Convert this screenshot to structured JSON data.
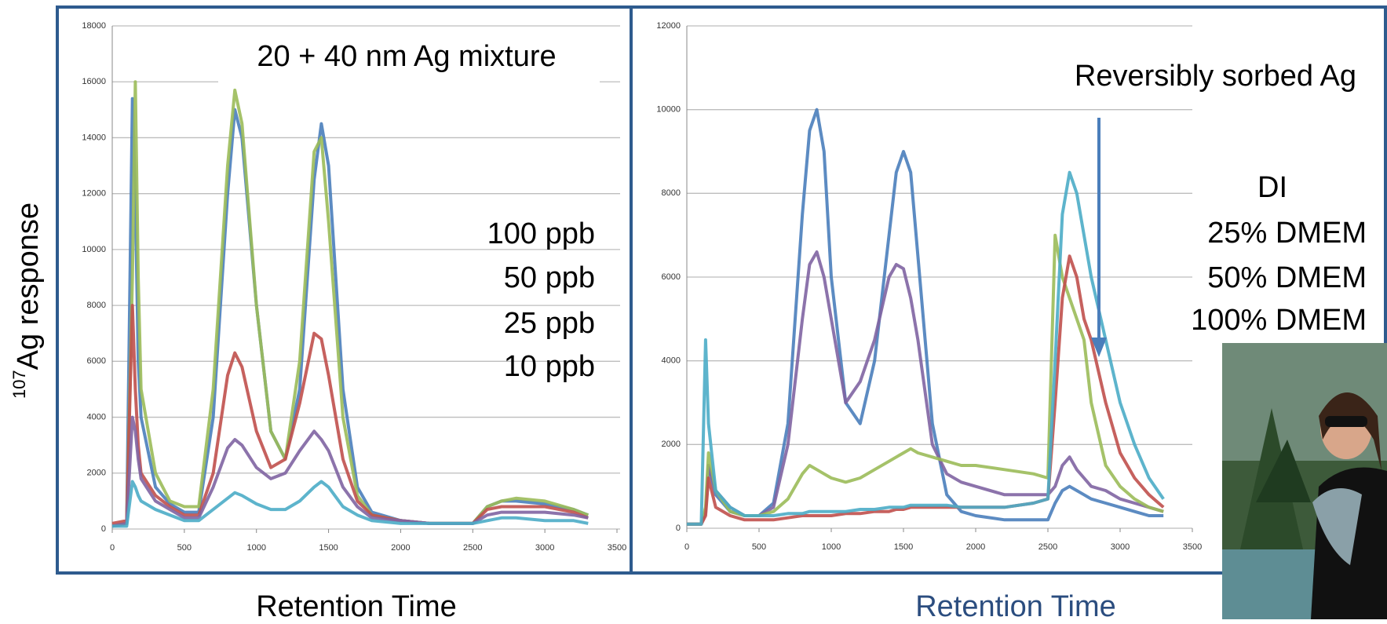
{
  "chart_data": [
    {
      "type": "line",
      "title": "20 + 40 nm Ag mixture",
      "annotations": [
        "100 ppb",
        "50 ppb",
        "25 ppb",
        "10 ppb"
      ],
      "xlabel": "Retention Time",
      "ylabel_sup": "107",
      "ylabel": "Ag response",
      "xlim": [
        0,
        3500
      ],
      "xticks": [
        0,
        500,
        1000,
        1500,
        2000,
        2500,
        3000,
        3500
      ],
      "ylim": [
        0,
        18000
      ],
      "yticks": [
        0,
        2000,
        4000,
        6000,
        8000,
        10000,
        12000,
        14000,
        16000,
        18000
      ],
      "grid": true,
      "x": [
        0,
        100,
        140,
        160,
        180,
        200,
        300,
        400,
        500,
        600,
        700,
        800,
        850,
        900,
        1000,
        1100,
        1200,
        1300,
        1400,
        1450,
        1500,
        1600,
        1700,
        1800,
        2000,
        2200,
        2500,
        2600,
        2700,
        2800,
        3000,
        3200,
        3300
      ],
      "series": [
        {
          "color": "#4a7ebb",
          "values": [
            100,
            200,
            15400,
            12000,
            6000,
            4000,
            1500,
            900,
            600,
            600,
            4000,
            12000,
            15000,
            14000,
            8000,
            3500,
            2500,
            5000,
            12500,
            14500,
            13000,
            5000,
            1500,
            600,
            300,
            200,
            200,
            800,
            1000,
            1000,
            900,
            700,
            500
          ]
        },
        {
          "color": "#9bbb59",
          "values": [
            100,
            200,
            9000,
            16000,
            9000,
            5000,
            2000,
            1000,
            800,
            800,
            5000,
            13000,
            15700,
            14500,
            8000,
            3500,
            2500,
            6000,
            13500,
            14000,
            11000,
            4000,
            1200,
            500,
            300,
            200,
            200,
            800,
            1000,
            1100,
            1000,
            700,
            500
          ]
        },
        {
          "color": "#c0504d",
          "values": [
            200,
            300,
            8000,
            5000,
            3000,
            2000,
            1200,
            800,
            500,
            500,
            2000,
            5500,
            6300,
            5800,
            3500,
            2200,
            2500,
            4500,
            7000,
            6800,
            5500,
            2500,
            1000,
            500,
            300,
            200,
            200,
            700,
            800,
            800,
            800,
            600,
            400
          ]
        },
        {
          "color": "#8064a2",
          "values": [
            100,
            200,
            4000,
            3500,
            2500,
            1800,
            1000,
            700,
            400,
            400,
            1500,
            2900,
            3200,
            3000,
            2200,
            1800,
            2000,
            2800,
            3500,
            3200,
            2800,
            1500,
            800,
            400,
            300,
            200,
            200,
            500,
            600,
            600,
            600,
            500,
            400
          ]
        },
        {
          "color": "#4bacc6",
          "values": [
            100,
            100,
            1700,
            1500,
            1200,
            1000,
            700,
            500,
            300,
            300,
            700,
            1100,
            1300,
            1200,
            900,
            700,
            700,
            1000,
            1500,
            1700,
            1500,
            800,
            500,
            300,
            200,
            200,
            200,
            300,
            400,
            400,
            300,
            300,
            200
          ]
        }
      ]
    },
    {
      "type": "line",
      "title": "Reversibly sorbed Ag",
      "annotations": [
        "DI",
        "25% DMEM",
        "50% DMEM",
        "100% DMEM"
      ],
      "xlabel": "Retention Time",
      "xlim": [
        0,
        3500
      ],
      "xticks": [
        0,
        500,
        1000,
        1500,
        2000,
        2500,
        3000,
        3500
      ],
      "ylim": [
        0,
        12000
      ],
      "yticks": [
        0,
        2000,
        4000,
        6000,
        8000,
        10000,
        12000
      ],
      "grid": true,
      "x": [
        0,
        100,
        130,
        150,
        200,
        300,
        400,
        500,
        600,
        700,
        800,
        850,
        900,
        950,
        1000,
        1100,
        1200,
        1300,
        1400,
        1450,
        1500,
        1550,
        1600,
        1700,
        1800,
        1900,
        2000,
        2200,
        2400,
        2500,
        2550,
        2600,
        2650,
        2700,
        2750,
        2800,
        2900,
        3000,
        3100,
        3200,
        3300
      ],
      "series": [
        {
          "color": "#4a7ebb",
          "values": [
            100,
            100,
            400,
            1500,
            800,
            400,
            300,
            300,
            600,
            2500,
            7500,
            9500,
            10000,
            9000,
            6000,
            3000,
            2500,
            4000,
            7000,
            8500,
            9000,
            8500,
            6500,
            2500,
            800,
            400,
            300,
            200,
            200,
            200,
            600,
            900,
            1000,
            900,
            800,
            700,
            600,
            500,
            400,
            300,
            300
          ]
        },
        {
          "color": "#8064a2",
          "values": [
            100,
            100,
            400,
            1500,
            900,
            500,
            300,
            300,
            500,
            2000,
            5000,
            6300,
            6600,
            6000,
            5000,
            3000,
            3500,
            4500,
            6000,
            6300,
            6200,
            5500,
            4500,
            2000,
            1300,
            1100,
            1000,
            800,
            800,
            800,
            1000,
            1500,
            1700,
            1400,
            1200,
            1000,
            900,
            700,
            600,
            500,
            400
          ]
        },
        {
          "color": "#9bbb59",
          "values": [
            100,
            100,
            500,
            1800,
            900,
            400,
            300,
            300,
            400,
            700,
            1300,
            1500,
            1400,
            1300,
            1200,
            1100,
            1200,
            1400,
            1600,
            1700,
            1800,
            1900,
            1800,
            1700,
            1600,
            1500,
            1500,
            1400,
            1300,
            1200,
            7000,
            6000,
            5500,
            5000,
            4500,
            3000,
            1500,
            1000,
            700,
            500,
            400
          ]
        },
        {
          "color": "#c0504d",
          "values": [
            100,
            100,
            300,
            1200,
            500,
            300,
            200,
            200,
            200,
            250,
            300,
            300,
            300,
            300,
            300,
            350,
            350,
            400,
            400,
            450,
            450,
            500,
            500,
            500,
            500,
            500,
            500,
            500,
            600,
            700,
            3000,
            5500,
            6500,
            6000,
            5000,
            4500,
            3000,
            1800,
            1200,
            800,
            500
          ]
        },
        {
          "color": "#4bacc6",
          "values": [
            100,
            100,
            4500,
            2500,
            900,
            500,
            300,
            300,
            300,
            350,
            350,
            400,
            400,
            400,
            400,
            400,
            450,
            450,
            500,
            500,
            500,
            550,
            550,
            550,
            550,
            500,
            500,
            500,
            600,
            700,
            4000,
            7500,
            8500,
            8000,
            7000,
            6000,
            4500,
            3000,
            2000,
            1200,
            700
          ]
        }
      ]
    }
  ]
}
